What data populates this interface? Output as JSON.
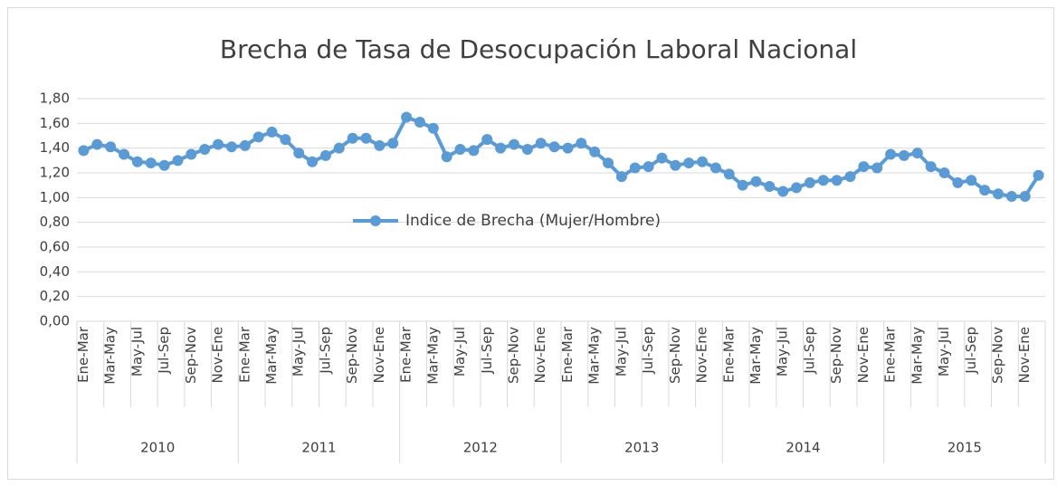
{
  "chart_data": {
    "type": "line",
    "title": "Brecha de Tasa de Desocupación Laboral Nacional",
    "categories": [
      "Ene-Mar",
      null,
      "Mar-May",
      null,
      "May-Jul",
      null,
      "Jul-Sep",
      null,
      "Sep-Nov",
      null,
      "Nov-Ene",
      null,
      "Ene-Mar",
      null,
      "Mar-May",
      null,
      "May-Jul",
      null,
      "Jul-Sep",
      null,
      "Sep-Nov",
      null,
      "Nov-Ene",
      null,
      "Ene-Mar",
      null,
      "Mar-May",
      null,
      "May-Jul",
      null,
      "Jul-Sep",
      null,
      "Sep-Nov",
      null,
      "Nov-Ene",
      null,
      "Ene-Mar",
      null,
      "Mar-May",
      null,
      "May-Jul",
      null,
      "Jul-Sep",
      null,
      "Sep-Nov",
      null,
      "Nov-Ene",
      null,
      "Ene-Mar",
      null,
      "Mar-May",
      null,
      "May-Jul",
      null,
      "Jul-Sep",
      null,
      "Sep-Nov",
      null,
      "Nov-Ene",
      null,
      "Ene-Mar",
      null,
      "Mar-May",
      null,
      "May-Jul",
      null,
      "Jul-Sep",
      null,
      "Sep-Nov",
      null,
      "Nov-Ene",
      null
    ],
    "groups": [
      "2010",
      "2011",
      "2012",
      "2013",
      "2014",
      "2015"
    ],
    "series": [
      {
        "name": "Indice de Brecha (Mujer/Hombre)",
        "color": "#5b9bd5",
        "values": [
          1.38,
          1.43,
          1.41,
          1.35,
          1.29,
          1.28,
          1.26,
          1.3,
          1.35,
          1.39,
          1.43,
          1.41,
          1.42,
          1.49,
          1.53,
          1.47,
          1.36,
          1.29,
          1.34,
          1.4,
          1.48,
          1.48,
          1.42,
          1.44,
          1.65,
          1.61,
          1.56,
          1.33,
          1.39,
          1.38,
          1.47,
          1.4,
          1.43,
          1.39,
          1.44,
          1.41,
          1.4,
          1.44,
          1.37,
          1.28,
          1.17,
          1.24,
          1.25,
          1.32,
          1.26,
          1.28,
          1.29,
          1.24,
          1.19,
          1.1,
          1.13,
          1.09,
          1.05,
          1.08,
          1.12,
          1.14,
          1.14,
          1.17,
          1.25,
          1.24,
          1.35,
          1.34,
          1.36,
          1.25,
          1.2,
          1.12,
          1.14,
          1.06,
          1.03,
          1.01,
          1.01,
          1.18
        ]
      }
    ],
    "ylim": [
      0,
      1.8
    ],
    "yticks": [
      {
        "value": 0,
        "label": "0,00"
      },
      {
        "value": 0.2,
        "label": "0,20"
      },
      {
        "value": 0.4,
        "label": "0,40"
      },
      {
        "value": 0.6,
        "label": "0,60"
      },
      {
        "value": 0.8,
        "label": "0,80"
      },
      {
        "value": 1,
        "label": "1,00"
      },
      {
        "value": 1.2,
        "label": "1,20"
      },
      {
        "value": 1.4,
        "label": "1,40"
      },
      {
        "value": 1.6,
        "label": "1,60"
      },
      {
        "value": 1.8,
        "label": "1,80"
      }
    ],
    "grid": true,
    "legend": "center"
  }
}
